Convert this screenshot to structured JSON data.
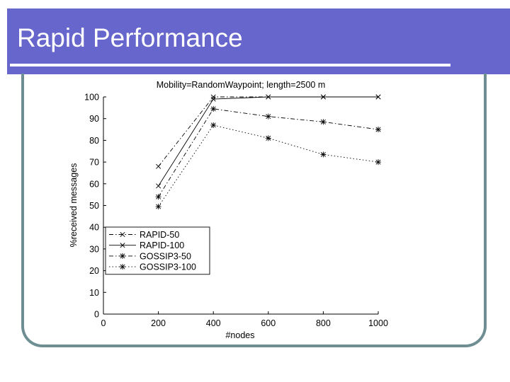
{
  "slide": {
    "title": "Rapid Performance"
  },
  "colors": {
    "header": "#6666cc",
    "frame": "#6e8e93",
    "series": "#000000"
  },
  "chart_data": {
    "type": "line",
    "title": "Mobility=RandomWaypoint; length=2500 m",
    "xlabel": "#nodes",
    "ylabel": "%received messages",
    "xlim": [
      0,
      1000
    ],
    "ylim": [
      0,
      100
    ],
    "xticks": [
      "0",
      "200",
      "400",
      "600",
      "800",
      "1000"
    ],
    "yticks": [
      "0",
      "10",
      "20",
      "30",
      "40",
      "50",
      "60",
      "70",
      "80",
      "90",
      "100"
    ],
    "legend_position": "lower-left",
    "grid": false,
    "x": [
      200,
      400,
      600,
      800,
      1000
    ],
    "series": [
      {
        "name": "RAPID-50",
        "marker": "x",
        "linestyle": "dashdot",
        "values": [
          68,
          100,
          100,
          100,
          100
        ]
      },
      {
        "name": "RAPID-100",
        "marker": "x",
        "linestyle": "solid",
        "values": [
          59,
          99,
          100,
          100,
          100
        ]
      },
      {
        "name": "GOSSIP3-50",
        "marker": "*",
        "linestyle": "dashdot",
        "values": [
          54,
          94.5,
          91,
          88.5,
          85
        ]
      },
      {
        "name": "GOSSIP3-100",
        "marker": "*",
        "linestyle": "dotted",
        "values": [
          49.5,
          87,
          81,
          73.5,
          70
        ]
      }
    ]
  }
}
